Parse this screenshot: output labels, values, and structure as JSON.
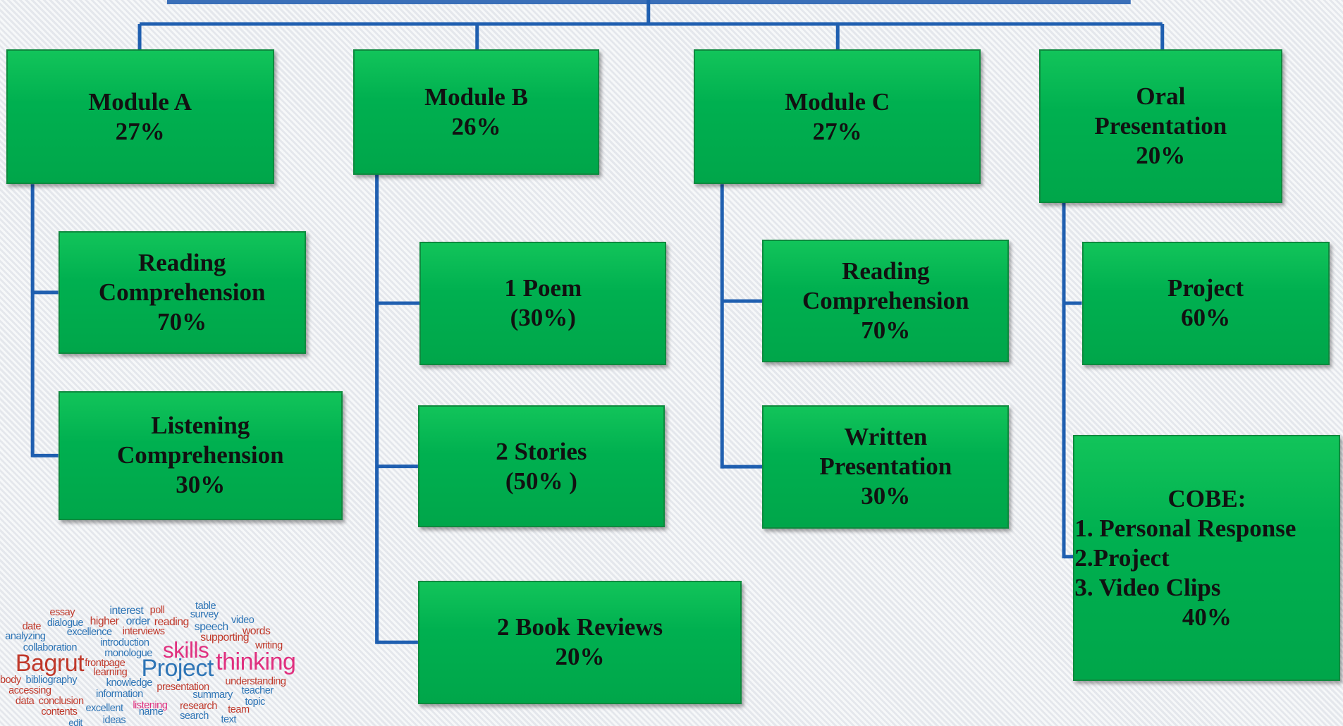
{
  "columns": [
    {
      "header": {
        "lines": [
          "Module A",
          "27%"
        ]
      },
      "children": [
        {
          "lines": [
            "Reading",
            "Comprehension",
            "70%"
          ]
        },
        {
          "lines": [
            "Listening",
            "Comprehension",
            "30%"
          ]
        }
      ]
    },
    {
      "header": {
        "lines": [
          "Module B",
          "26%"
        ]
      },
      "children": [
        {
          "lines": [
            "1 Poem",
            "(30%)"
          ]
        },
        {
          "lines": [
            "2 Stories",
            "(50% )"
          ]
        },
        {
          "lines": [
            "2 Book Reviews",
            "20%"
          ]
        }
      ]
    },
    {
      "header": {
        "lines": [
          "Module C",
          "27%"
        ]
      },
      "children": [
        {
          "lines": [
            "Reading",
            "Comprehension",
            "70%"
          ]
        },
        {
          "lines": [
            "Written",
            "Presentation",
            "30%"
          ]
        }
      ]
    },
    {
      "header": {
        "lines": [
          "Oral",
          "Presentation",
          "20%"
        ]
      },
      "children": [
        {
          "lines": [
            "Project",
            "60%"
          ]
        },
        {
          "title": "COBE:",
          "items": [
            "1. Personal Response",
            "2.Project",
            "3. Video Clips"
          ],
          "weight": "40%"
        }
      ]
    }
  ],
  "word_cloud": [
    "essay",
    "interest",
    "poll",
    "table",
    "survey",
    "date",
    "dialogue",
    "higher",
    "order",
    "reading",
    "video",
    "speech",
    "words",
    "analyzing",
    "excellence",
    "interviews",
    "introduction",
    "supporting",
    "writing",
    "collaboration",
    "monologue",
    "skills",
    "Bagrut",
    "frontpage",
    "Project",
    "thinking",
    "learning",
    "body",
    "bibliography",
    "knowledge",
    "presentation",
    "understanding",
    "accessing",
    "teacher",
    "information",
    "summary",
    "topic",
    "data",
    "conclusion",
    "excellent",
    "listening",
    "research",
    "team",
    "contents",
    "name",
    "edit",
    "ideas",
    "search",
    "text"
  ]
}
